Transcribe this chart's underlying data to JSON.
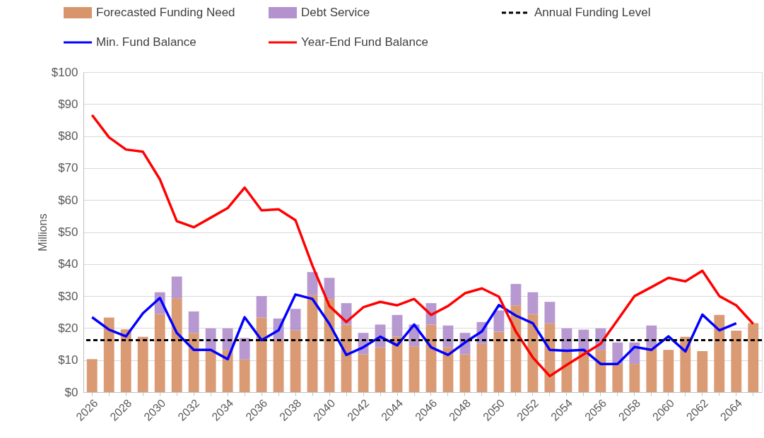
{
  "chart_data": {
    "type": "bar",
    "stacked": true,
    "ylabel": "Millions",
    "categories": [
      "2026",
      null,
      "2028",
      null,
      "2030",
      null,
      "2032",
      null,
      "2034",
      null,
      "2036",
      null,
      "2038",
      null,
      "2040",
      null,
      "2042",
      null,
      "2044",
      null,
      "2046",
      null,
      "2048",
      null,
      "2050",
      null,
      "2052",
      null,
      "2054",
      null,
      "2056",
      null,
      "2058",
      null,
      "2060",
      null,
      "2062",
      null,
      "2064",
      null
    ],
    "series": [
      {
        "name": "Forecasted Funding Need",
        "color": "#d8956c",
        "values": [
          10.3,
          23.3,
          19.6,
          17.3,
          24.4,
          29.3,
          18.5,
          13.2,
          13.2,
          10.2,
          23.3,
          16.3,
          19.3,
          30.3,
          29.1,
          21.1,
          11.8,
          14.0,
          17.3,
          14.3,
          21.1,
          14.0,
          11.8,
          15.1,
          18.9,
          27.1,
          24.4,
          21.5,
          13.2,
          12.8,
          13.2,
          8.8,
          8.8,
          14.0,
          13.2,
          17.3,
          12.8,
          24.1,
          19.2,
          21.5
        ]
      },
      {
        "name": "Debt Service",
        "color": "#b392cd",
        "values": [
          null,
          null,
          null,
          null,
          6.8,
          6.8,
          6.7,
          6.7,
          6.7,
          6.7,
          6.7,
          6.7,
          6.7,
          7.2,
          6.6,
          6.7,
          6.7,
          7.1,
          6.8,
          6.8,
          6.7,
          6.8,
          6.7,
          6.8,
          6.6,
          6.7,
          6.8,
          6.7,
          6.7,
          6.7,
          6.7,
          6.7,
          6.7,
          6.8,
          null,
          null,
          null,
          null,
          null,
          null
        ]
      },
      {
        "name": "Min. Fund Balance",
        "type": "line",
        "color": "#0000ff",
        "values": [
          23.4,
          19.5,
          17.4,
          24.6,
          29.4,
          18.5,
          13.2,
          13.2,
          10.3,
          23.4,
          16.2,
          19.3,
          30.5,
          29.1,
          21.3,
          11.6,
          14.0,
          17.3,
          14.6,
          21.1,
          14.0,
          11.6,
          15.5,
          19.0,
          27.2,
          23.9,
          21.5,
          13.2,
          12.9,
          13.2,
          8.8,
          8.8,
          14.1,
          13.2,
          17.4,
          12.7,
          24.2,
          19.3,
          21.5,
          null
        ]
      },
      {
        "name": "Year-End Fund Balance",
        "type": "line",
        "color": "#ff0000",
        "values": [
          86.6,
          79.6,
          75.8,
          75.1,
          66.5,
          53.4,
          51.5,
          54.5,
          57.5,
          63.9,
          56.8,
          57.1,
          53.7,
          39.5,
          26.9,
          21.9,
          26.5,
          28.2,
          27.1,
          29.1,
          24.1,
          26.9,
          30.9,
          32.4,
          29.8,
          18.9,
          10.8,
          5.0,
          8.5,
          11.8,
          15.1,
          22.5,
          30.0,
          32.8,
          35.7,
          34.6,
          37.9,
          30.0,
          27.1,
          21.3
        ]
      }
    ],
    "ref_lines": [
      {
        "axis": "y",
        "value": 16.2,
        "label": "Annual Funding Level",
        "color": "#000000",
        "line_style": "dashed"
      }
    ],
    "ylim": [
      0,
      100
    ],
    "yticks": [
      {
        "value": 0,
        "label": "$0"
      },
      {
        "value": 10,
        "label": "$10"
      },
      {
        "value": 20,
        "label": "$20"
      },
      {
        "value": 30,
        "label": "$30"
      },
      {
        "value": 40,
        "label": "$40"
      },
      {
        "value": 50,
        "label": "$50"
      },
      {
        "value": 60,
        "label": "$60"
      },
      {
        "value": 70,
        "label": "$70"
      },
      {
        "value": 80,
        "label": "$80"
      },
      {
        "value": 90,
        "label": "$90"
      },
      {
        "value": 100,
        "label": "$100"
      }
    ],
    "grid": "y",
    "legend": "top",
    "marker": "none",
    "line_style": "solid"
  }
}
